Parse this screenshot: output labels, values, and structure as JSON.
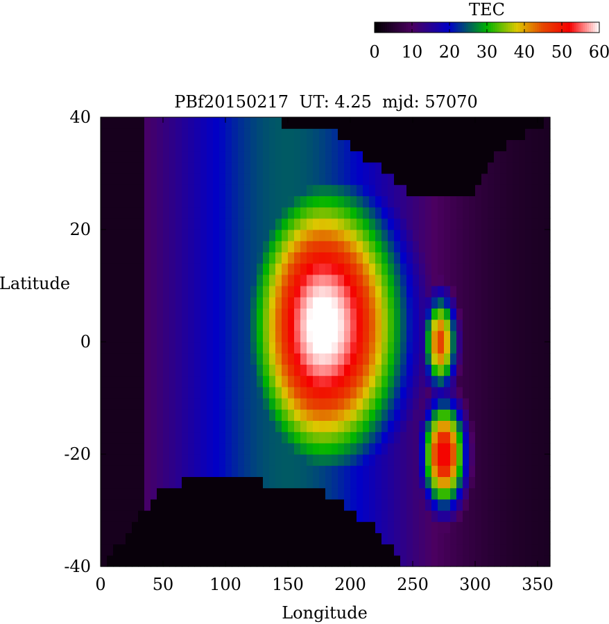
{
  "chart_data": {
    "type": "heatmap",
    "title": "PBf20150217  UT: 4.25  mjd: 57070",
    "xlabel": "Longitude",
    "ylabel": "Latitude",
    "xlim": [
      0,
      360
    ],
    "ylim": [
      -40,
      40
    ],
    "x_ticks": [
      "0",
      "50",
      "100",
      "150",
      "200",
      "250",
      "300",
      "350"
    ],
    "x_tick_values": [
      0,
      50,
      100,
      150,
      200,
      250,
      300,
      350
    ],
    "y_ticks": [
      "40",
      "20",
      "0",
      "-20",
      "-40"
    ],
    "y_tick_values": [
      40,
      20,
      0,
      -20,
      -40
    ],
    "grid": false,
    "cell_size": {
      "lon": 5,
      "lat": 2
    },
    "colorbar": {
      "label": "TEC",
      "range": [
        0,
        60
      ],
      "ticks": [
        "0",
        "10",
        "20",
        "30",
        "40",
        "50",
        "60"
      ],
      "tick_values": [
        0,
        10,
        20,
        30,
        40,
        50,
        60
      ],
      "position": "top-right",
      "palette": [
        [
          0,
          "#000000"
        ],
        [
          10,
          "#4b0060"
        ],
        [
          20,
          "#0000c8"
        ],
        [
          30,
          "#00b400"
        ],
        [
          38,
          "#dcc800"
        ],
        [
          45,
          "#e64600"
        ],
        [
          52,
          "#f50000"
        ],
        [
          56,
          "#ff8282"
        ],
        [
          60,
          "#ffffff"
        ]
      ]
    },
    "field_description_keys": {
      "bright_core": {
        "lon_center": 178,
        "lat_center": 3,
        "peak_tec": 62
      },
      "secondary_south": {
        "lon_center": 275,
        "lat_center": -20,
        "peak_tec": 53
      },
      "secondary_east": {
        "lon_center": 272,
        "lat_center": 0,
        "peak_tec": 46
      },
      "data_lat_north_edge": [
        [
          0,
          40
        ],
        [
          120,
          40
        ],
        [
          190,
          37
        ],
        [
          240,
          28
        ],
        [
          262,
          25
        ],
        [
          285,
          25
        ],
        [
          300,
          26
        ],
        [
          320,
          34
        ],
        [
          360,
          40
        ]
      ],
      "data_lat_south_edge": [
        [
          0,
          -40
        ],
        [
          50,
          -26
        ],
        [
          80,
          -24
        ],
        [
          130,
          -25
        ],
        [
          180,
          -27
        ],
        [
          220,
          -33
        ],
        [
          245,
          -40
        ],
        [
          360,
          -40
        ]
      ]
    }
  }
}
